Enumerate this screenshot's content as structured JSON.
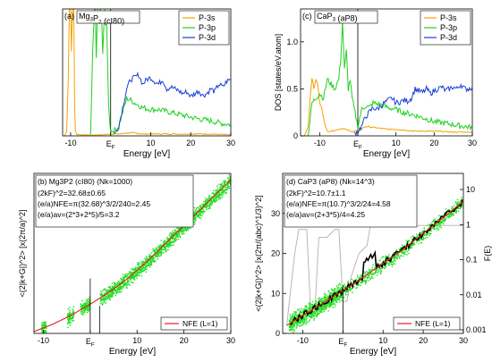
{
  "chart_data": [
    {
      "type": "line",
      "panel_label": "(a)",
      "title": "Mg3P2 (cI80)",
      "title_main": "Mg",
      "title_sub1": "3",
      "title_mid": "P",
      "title_sub2": "2",
      "title_tail": " (cI80)",
      "xlabel": "Energy [eV]",
      "ylabel": "",
      "xlim": [
        -12,
        30
      ],
      "ylim": [
        0,
        1.35
      ],
      "xticks": [
        -10,
        0,
        10,
        20,
        30
      ],
      "xtick_labels": [
        "-10",
        "",
        "10",
        "20",
        "30"
      ],
      "yticks": [],
      "ef_marker": "E",
      "ef_sub": "F",
      "ef_x": 0,
      "legend_position": "top-right",
      "series": [
        {
          "name": "P-3s",
          "color": "#f2a300",
          "x": [
            -11.5,
            -11,
            -10.6,
            -10.3,
            -10.0,
            -9.8,
            -9.5,
            -9.2,
            -9.0,
            -8.8,
            -8.5,
            -8,
            -6,
            -4,
            -2,
            0,
            2,
            4,
            6,
            8,
            10,
            15,
            20,
            25,
            30
          ],
          "y": [
            0,
            0.05,
            0.6,
            1.35,
            1.35,
            0.9,
            1.35,
            1.35,
            0.3,
            0.05,
            0.02,
            0.01,
            0.01,
            0.01,
            0.01,
            0.02,
            0.02,
            0.03,
            0.03,
            0.02,
            0.02,
            0.02,
            0.02,
            0.02,
            0.01
          ]
        },
        {
          "name": "P-3p",
          "color": "#1fd11f",
          "x": [
            -5,
            -4.5,
            -4,
            -3.8,
            -3.6,
            -3.3,
            -3,
            -2.6,
            -2.3,
            -2,
            -1.5,
            -1,
            -0.5,
            0,
            1,
            2,
            3,
            4,
            5,
            6,
            8,
            10,
            12,
            15,
            18,
            20,
            22,
            25,
            28,
            30
          ],
          "y": [
            0,
            0.9,
            1.35,
            1.3,
            0.8,
            1.35,
            1.2,
            1.35,
            1.3,
            0.9,
            1.35,
            1.2,
            0.3,
            0.05,
            0.06,
            0.1,
            0.25,
            0.4,
            0.38,
            0.35,
            0.3,
            0.28,
            0.28,
            0.25,
            0.22,
            0.2,
            0.18,
            0.16,
            0.13,
            0.12
          ]
        },
        {
          "name": "P-3d",
          "color": "#1a3fd6",
          "x": [
            1,
            2,
            3,
            4,
            5,
            6,
            7,
            8,
            9,
            10,
            11,
            12,
            13,
            14,
            15,
            16,
            17,
            18,
            19,
            20,
            21,
            22,
            23,
            24,
            25,
            26,
            27,
            28,
            29,
            30
          ],
          "y": [
            0.02,
            0.1,
            0.3,
            0.5,
            0.6,
            0.62,
            0.65,
            0.55,
            0.6,
            0.62,
            0.58,
            0.55,
            0.6,
            0.5,
            0.52,
            0.5,
            0.48,
            0.45,
            0.47,
            0.42,
            0.45,
            0.48,
            0.43,
            0.45,
            0.5,
            0.47,
            0.55,
            0.52,
            0.58,
            0.6
          ]
        }
      ]
    },
    {
      "type": "line",
      "panel_label": "(c)",
      "title": "CaP3 (aP8)",
      "title_main": "CaP",
      "title_sub1": "3",
      "title_mid": "",
      "title_sub2": "",
      "title_tail": " (aP8)",
      "xlabel": "Energy [eV]",
      "ylabel": "DOS [states/eV.atom]",
      "xlim": [
        -15,
        30
      ],
      "ylim": [
        0,
        1.35
      ],
      "xticks": [
        -10,
        0,
        10,
        20,
        30
      ],
      "xtick_labels": [
        "-10",
        "",
        "10",
        "20",
        "30"
      ],
      "yticks": [
        0,
        0.5,
        1.0
      ],
      "ytick_labels": [
        "0",
        "0.5",
        "1.0"
      ],
      "ef_marker": "E",
      "ef_sub": "F",
      "ef_x": 0,
      "legend_position": "top-right",
      "series": [
        {
          "name": "P-3s",
          "color": "#f2a300",
          "x": [
            -14,
            -13,
            -12.5,
            -12,
            -11.5,
            -11,
            -10.5,
            -10,
            -9.5,
            -9,
            -8.5,
            -8,
            -7,
            -6,
            -5,
            -4,
            -2,
            0,
            2,
            4,
            6,
            8,
            10,
            15,
            20,
            25,
            30
          ],
          "y": [
            0,
            0.1,
            0.4,
            0.62,
            0.5,
            0.6,
            0.55,
            0.35,
            0.3,
            0.2,
            0.1,
            0.05,
            0.05,
            0.06,
            0.07,
            0.08,
            0.05,
            0.05,
            0.1,
            0.09,
            0.08,
            0.07,
            0.07,
            0.05,
            0.05,
            0.04,
            0.04
          ]
        },
        {
          "name": "P-3p",
          "color": "#1fd11f",
          "x": [
            -13,
            -12,
            -11,
            -10,
            -9,
            -8,
            -7,
            -6,
            -5,
            -4.5,
            -4,
            -3.5,
            -3,
            -2.5,
            -2,
            -1.5,
            -1,
            0,
            1,
            2,
            3,
            4,
            6,
            8,
            10,
            12,
            15,
            18,
            20,
            22,
            25,
            28,
            30
          ],
          "y": [
            0,
            0.35,
            0.4,
            0.45,
            0.4,
            0.6,
            0.55,
            0.5,
            0.6,
            0.8,
            1.22,
            0.7,
            0.9,
            0.5,
            0.6,
            0.4,
            0.3,
            0.1,
            0.28,
            0.32,
            0.3,
            0.35,
            0.33,
            0.3,
            0.28,
            0.25,
            0.22,
            0.18,
            0.15,
            0.14,
            0.12,
            0.1,
            0.09
          ]
        },
        {
          "name": "P-3d",
          "color": "#1a3fd6",
          "x": [
            -1,
            0,
            1,
            2,
            3,
            4,
            5,
            6,
            7,
            8,
            9,
            10,
            11,
            12,
            13,
            14,
            15,
            16,
            17,
            18,
            19,
            20,
            21,
            22,
            23,
            24,
            25,
            26,
            27,
            28,
            29,
            30
          ],
          "y": [
            0.02,
            0.05,
            0.1,
            0.2,
            0.25,
            0.3,
            0.28,
            0.32,
            0.35,
            0.38,
            0.4,
            0.35,
            0.36,
            0.38,
            0.37,
            0.4,
            0.5,
            0.48,
            0.46,
            0.5,
            0.45,
            0.48,
            0.5,
            0.52,
            0.48,
            0.5,
            0.52,
            0.5,
            0.55,
            0.5,
            0.5,
            0.52
          ]
        }
      ]
    },
    {
      "type": "scatter",
      "panel_label": "(b)",
      "title": "Mg3P2 (cI80) (Nk=1000)",
      "xlabel": "Energy [eV]",
      "ylabel": "<(2|k+G|)^2> [x(2π/a)^2]",
      "xlim": [
        -12,
        30
      ],
      "ylim": [
        0,
        175
      ],
      "xticks": [
        -10,
        0,
        10,
        20,
        30
      ],
      "xtick_labels": [
        "-10",
        "",
        "10",
        "20",
        "30"
      ],
      "ef_marker": "E",
      "ef_sub": "F",
      "ef_x": 0,
      "annotations": [
        "(2kF)^2=32.68±0.65",
        "(e/a)NFE=π(32.68)^3/2/240=2.45",
        "(e/a)av=(2*3+2*5)/5=3.2"
      ],
      "legend_position": "bottom-right",
      "series": [
        {
          "name": "NFE (L=1)",
          "color": "#e0201a",
          "x": [
            -12,
            -8,
            -4,
            0,
            4,
            8,
            12,
            16,
            20,
            24,
            28,
            30
          ],
          "y": [
            2,
            10,
            20,
            32,
            45,
            60,
            78,
            98,
            118,
            138,
            158,
            168
          ]
        }
      ],
      "scatter_color": "#22dd22"
    },
    {
      "type": "scatter",
      "panel_label": "(d)",
      "title": "CaP3 (aP8) (Nk=14^3)",
      "xlabel": "Energy [eV]",
      "ylabel": "<(2|k+G|)^2> [x(2π/(abc)^1/3)^2]",
      "y2label": "F(E)",
      "xlim": [
        -15,
        30
      ],
      "ylim": [
        0,
        40
      ],
      "xticks": [
        -10,
        0,
        10,
        20,
        30
      ],
      "xtick_labels": [
        "-10",
        "",
        "10",
        "20",
        "30"
      ],
      "yticks": [
        0,
        10,
        20,
        30
      ],
      "y2_ticks": [
        "10",
        "1",
        "0.1",
        "0.01",
        "0.001"
      ],
      "ef_marker": "E",
      "ef_sub": "F",
      "ef_x": 0,
      "annotations": [
        "(2kF)^2=10.7±1.1",
        "(e/a)NFE=π(10.7)^3/2/24=4.58",
        "(e/a)av=(2+3*5)/4=4.25"
      ],
      "legend_position": "bottom-right",
      "series": [
        {
          "name": "NFE (L=1)",
          "color": "#e0201a",
          "x": [
            -14,
            -10,
            -5,
            0,
            5,
            10,
            15,
            20,
            25,
            30
          ],
          "y": [
            2,
            4.5,
            7.5,
            10.7,
            14,
            17.5,
            21,
            25,
            29,
            33
          ]
        }
      ],
      "scatter_color": "#22dd22"
    }
  ]
}
